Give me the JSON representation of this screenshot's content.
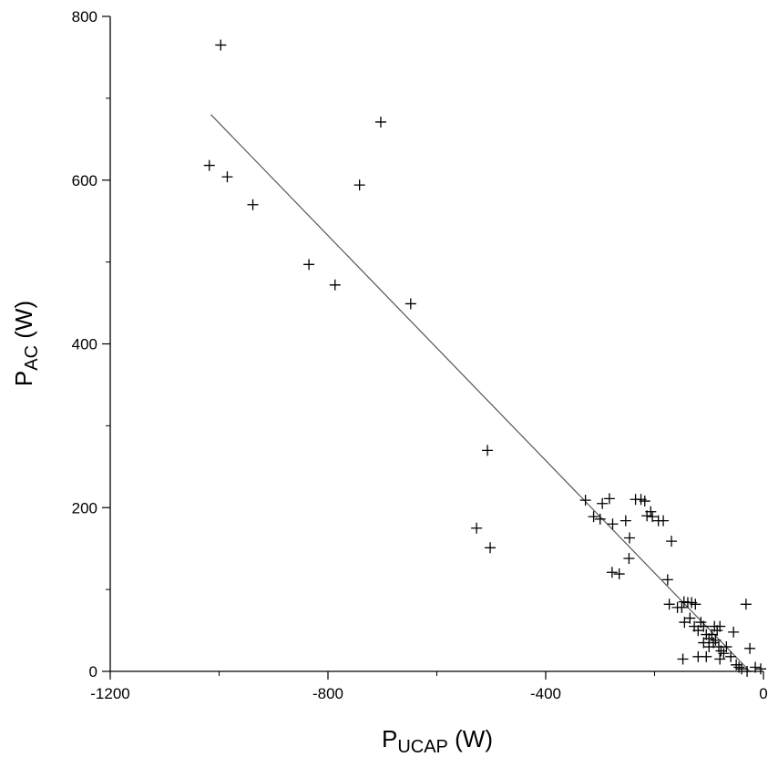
{
  "chart_data": {
    "type": "scatter",
    "xlabel": {
      "main": "P",
      "sub": "UCAP",
      "unit": " (W)"
    },
    "ylabel": {
      "main": "P",
      "sub": "AC",
      "unit": " (W)"
    },
    "xlim": [
      -1200,
      0
    ],
    "ylim": [
      0,
      800
    ],
    "x_ticks": [
      -1200,
      -800,
      -400,
      0
    ],
    "x_tick_labels": [
      "-1200",
      "-800",
      "-400",
      "0"
    ],
    "x_minor_ticks": [
      -1000,
      -600,
      -200
    ],
    "y_ticks": [
      0,
      200,
      400,
      600,
      800
    ],
    "y_tick_labels": [
      "0",
      "200",
      "400",
      "600",
      "800"
    ],
    "y_minor_ticks": [
      100,
      300,
      500,
      700
    ],
    "grid": false,
    "marker": "plus",
    "fit_line": {
      "x": [
        -1015,
        -25
      ],
      "y": [
        680,
        0
      ]
    },
    "points": [
      [
        -997,
        765
      ],
      [
        -1018,
        618
      ],
      [
        -985,
        604
      ],
      [
        -938,
        570
      ],
      [
        -703,
        671
      ],
      [
        -742,
        594
      ],
      [
        -835,
        497
      ],
      [
        -787,
        472
      ],
      [
        -648,
        449
      ],
      [
        -507,
        270
      ],
      [
        -527,
        175
      ],
      [
        -502,
        151
      ],
      [
        -327,
        209
      ],
      [
        -312,
        189
      ],
      [
        -300,
        186
      ],
      [
        -296,
        205
      ],
      [
        -283,
        211
      ],
      [
        -277,
        180
      ],
      [
        -278,
        121
      ],
      [
        -265,
        119
      ],
      [
        -253,
        184
      ],
      [
        -246,
        163
      ],
      [
        -247,
        138
      ],
      [
        -235,
        210
      ],
      [
        -225,
        210
      ],
      [
        -218,
        208
      ],
      [
        -214,
        190
      ],
      [
        -207,
        195
      ],
      [
        -204,
        189
      ],
      [
        -193,
        184
      ],
      [
        -184,
        184
      ],
      [
        -176,
        112
      ],
      [
        -169,
        159
      ],
      [
        -173,
        82
      ],
      [
        -158,
        78
      ],
      [
        -150,
        78
      ],
      [
        -146,
        85
      ],
      [
        -139,
        84
      ],
      [
        -132,
        84
      ],
      [
        -125,
        82
      ],
      [
        -145,
        60
      ],
      [
        -135,
        65
      ],
      [
        -127,
        55
      ],
      [
        -120,
        50
      ],
      [
        -115,
        60
      ],
      [
        -110,
        55
      ],
      [
        -105,
        45
      ],
      [
        -100,
        40
      ],
      [
        -95,
        45
      ],
      [
        -90,
        55
      ],
      [
        -85,
        50
      ],
      [
        -80,
        55
      ],
      [
        -88,
        38
      ],
      [
        -82,
        30
      ],
      [
        -78,
        25
      ],
      [
        -73,
        22
      ],
      [
        -68,
        30
      ],
      [
        -110,
        35
      ],
      [
        -100,
        30
      ],
      [
        -92,
        35
      ],
      [
        -120,
        18
      ],
      [
        -105,
        18
      ],
      [
        -148,
        15
      ],
      [
        -80,
        15
      ],
      [
        -55,
        48
      ],
      [
        -50,
        8
      ],
      [
        -45,
        5
      ],
      [
        -40,
        3
      ],
      [
        -30,
        0
      ],
      [
        -25,
        28
      ],
      [
        -32,
        82
      ],
      [
        -15,
        5
      ],
      [
        -5,
        3
      ],
      [
        -60,
        18
      ]
    ]
  }
}
